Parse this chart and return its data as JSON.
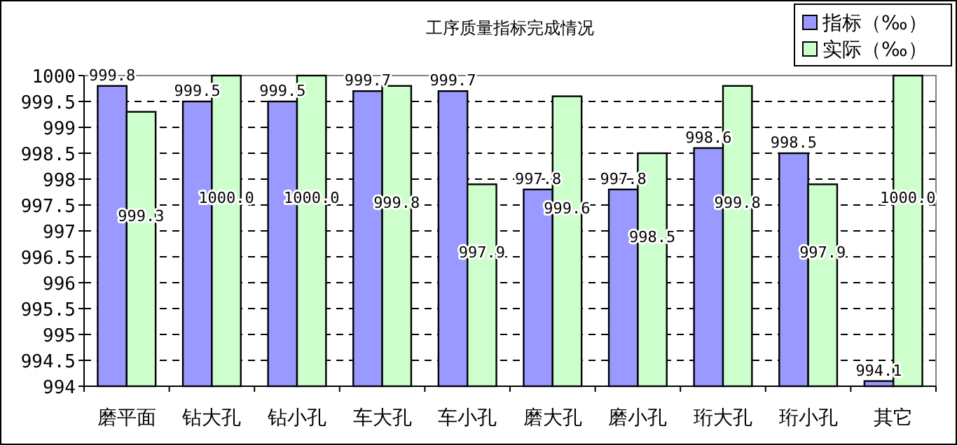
{
  "chart_data": {
    "type": "bar",
    "title": "工序质量指标完成情况",
    "categories": [
      "磨平面",
      "钻大孔",
      "钻小孔",
      "车大孔",
      "车小孔",
      "磨大孔",
      "磨小孔",
      "珩大孔",
      "珩小孔",
      "其它"
    ],
    "series": [
      {
        "name": "指标（‰）",
        "color": "#9999ff",
        "values": [
          999.8,
          999.5,
          999.5,
          999.7,
          999.7,
          997.8,
          997.8,
          998.6,
          998.5,
          994.1
        ],
        "value_labels": [
          "999.8",
          "999.5",
          "999.5",
          "999.7",
          "999.7",
          "997.8",
          "997.8",
          "998.6",
          "998.5",
          "994.1"
        ]
      },
      {
        "name": "实际（‰）",
        "color": "#ccffcc",
        "values": [
          999.3,
          1000.0,
          1000.0,
          999.8,
          997.9,
          999.6,
          998.5,
          999.8,
          997.9,
          1000.0
        ],
        "value_labels": [
          "999.3",
          "1000.0",
          "1000.0",
          "999.8",
          "997.9",
          "999.6",
          "998.5",
          "999.8",
          "997.9",
          "1000.0"
        ]
      }
    ],
    "ylim": [
      994,
      1000
    ],
    "yticks": [
      994,
      994.5,
      995,
      995.5,
      996,
      996.5,
      997,
      997.5,
      998,
      998.5,
      999,
      999.5,
      1000
    ],
    "grid": "y",
    "legend": "top right"
  }
}
